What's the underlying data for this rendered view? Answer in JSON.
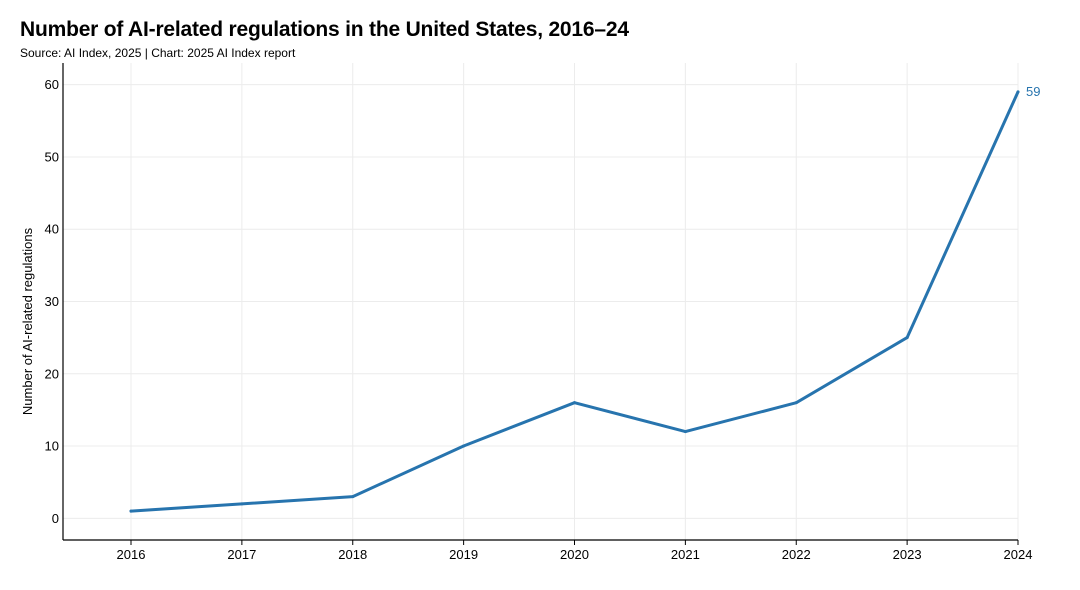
{
  "chart_data": {
    "type": "line",
    "title": "Number of AI-related regulations in the United States, 2016–24",
    "subtitle": "Source: AI Index, 2025 | Chart: 2025 AI Index report",
    "xlabel": "",
    "ylabel": "Number of AI-related regulations",
    "x": [
      "2016",
      "2017",
      "2018",
      "2019",
      "2020",
      "2021",
      "2022",
      "2023",
      "2024"
    ],
    "series": [
      {
        "values": [
          1,
          2,
          3,
          10,
          16,
          12,
          16,
          25,
          59
        ],
        "color": "#2774ae"
      }
    ],
    "end_label": "59",
    "ylim": [
      -3,
      63
    ],
    "yticks": [
      0,
      10,
      20,
      30,
      40,
      50,
      60
    ],
    "grid": true,
    "legend": "none"
  }
}
